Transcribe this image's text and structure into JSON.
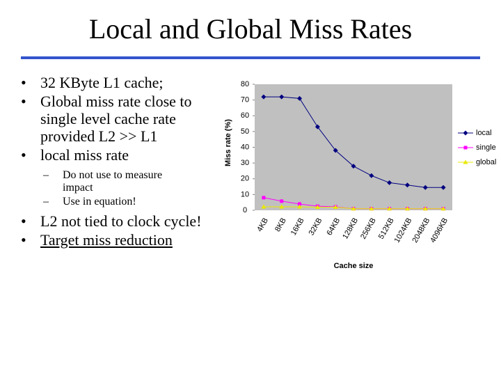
{
  "title": "Local and Global Miss Rates",
  "bullets": [
    {
      "text": "32 KByte L1 cache;"
    },
    {
      "text": "Global miss rate close to single level cache rate provided L2 >> L1"
    },
    {
      "text": "local miss rate",
      "sub": [
        "Do not use to measure impact",
        "Use in equation!"
      ]
    },
    {
      "text": "L2 not tied to clock cycle!"
    },
    {
      "text": "Target miss reduction"
    }
  ],
  "chart_data": {
    "type": "line",
    "xlabel": "Cache size",
    "ylabel": "Miss rate (%)",
    "categories": [
      "4KB",
      "8KB",
      "16KB",
      "32KB",
      "64KB",
      "128KB",
      "256KB",
      "512KB",
      "1024KB",
      "2048KB",
      "4096KB"
    ],
    "series": [
      {
        "name": "local",
        "color": "#000080",
        "marker": "diamond",
        "values": [
          72,
          72,
          71,
          53,
          38,
          28,
          22,
          17.5,
          16,
          14.5,
          14.5
        ]
      },
      {
        "name": "single",
        "color": "#ff00ff",
        "marker": "square",
        "values": [
          8,
          5.8,
          4,
          2.6,
          2.2,
          1,
          1,
          1,
          1,
          1,
          1
        ]
      },
      {
        "name": "global",
        "color": "#e8e800",
        "marker": "triangle",
        "values": [
          2.2,
          2.2,
          2.2,
          2,
          2,
          1,
          1,
          1,
          1,
          1,
          1
        ]
      }
    ],
    "ylim": [
      0,
      80
    ],
    "yticks": [
      0,
      10,
      20,
      30,
      40,
      50,
      60,
      70,
      80
    ],
    "legend": "right"
  }
}
